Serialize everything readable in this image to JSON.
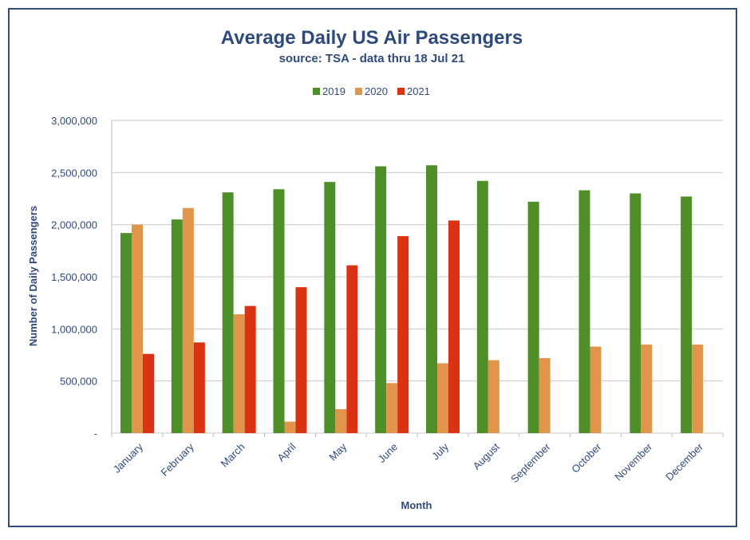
{
  "chart_data": {
    "type": "bar",
    "title": "Average Daily US Air Passengers",
    "subtitle": "source: TSA - data thru 18 Jul 21",
    "xlabel": "Month",
    "ylabel": "Number of Daily Passengers",
    "ylim": [
      0,
      3000000
    ],
    "yticks": [
      "-",
      "500,000",
      "1,000,000",
      "1,500,000",
      "2,000,000",
      "2,500,000",
      "3,000,000"
    ],
    "ytick_values": [
      0,
      500000,
      1000000,
      1500000,
      2000000,
      2500000,
      3000000
    ],
    "grid": "horizontal",
    "legend_position": "top",
    "categories": [
      "January",
      "February",
      "March",
      "April",
      "May",
      "June",
      "July",
      "August",
      "September",
      "October",
      "November",
      "December"
    ],
    "series": [
      {
        "name": "2019",
        "color": "#4e8f2a",
        "values": [
          1920000,
          2050000,
          2310000,
          2340000,
          2410000,
          2560000,
          2570000,
          2420000,
          2220000,
          2330000,
          2300000,
          2270000
        ]
      },
      {
        "name": "2020",
        "color": "#e0954a",
        "values": [
          2000000,
          2160000,
          1140000,
          110000,
          230000,
          480000,
          670000,
          700000,
          720000,
          830000,
          850000,
          850000
        ]
      },
      {
        "name": "2021",
        "color": "#dc3214",
        "values": [
          760000,
          870000,
          1220000,
          1400000,
          1610000,
          1890000,
          2040000,
          null,
          null,
          null,
          null,
          null
        ]
      }
    ]
  }
}
